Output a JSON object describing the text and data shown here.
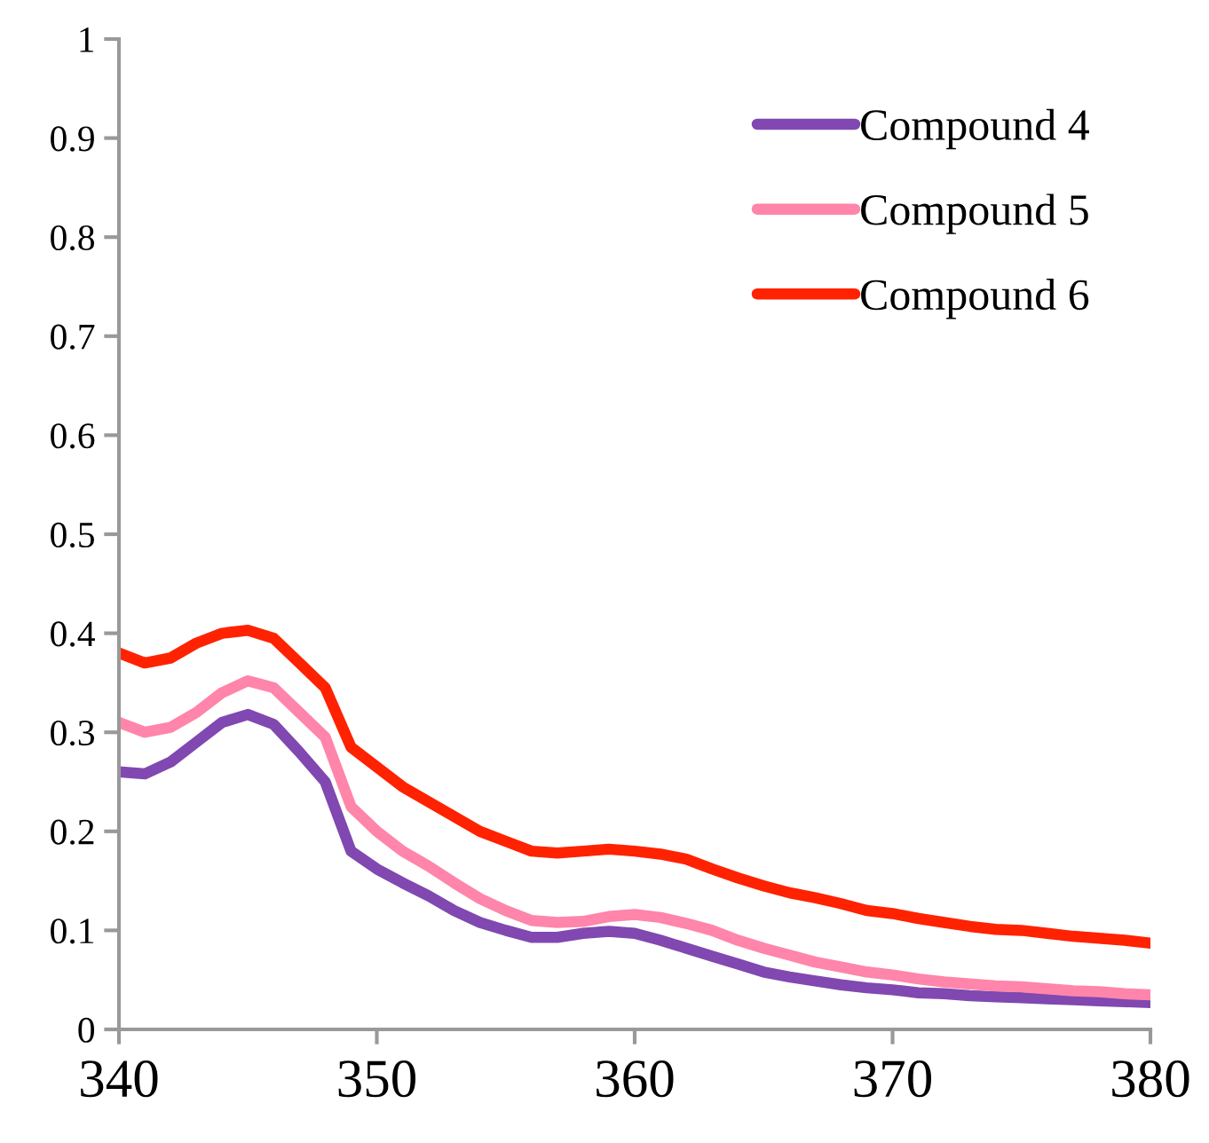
{
  "chart_data": {
    "type": "line",
    "x": [
      340,
      341,
      342,
      343,
      344,
      345,
      346,
      347,
      348,
      349,
      350,
      351,
      352,
      353,
      354,
      355,
      356,
      357,
      358,
      359,
      360,
      361,
      362,
      363,
      364,
      365,
      366,
      367,
      368,
      369,
      370,
      371,
      372,
      373,
      374,
      375,
      376,
      377,
      378,
      379,
      380
    ],
    "series": [
      {
        "name": "Compound 4",
        "color": "#8048b0",
        "values": [
          0.26,
          0.258,
          0.27,
          0.29,
          0.31,
          0.318,
          0.308,
          0.28,
          0.25,
          0.18,
          0.162,
          0.148,
          0.135,
          0.12,
          0.108,
          0.1,
          0.093,
          0.093,
          0.097,
          0.099,
          0.097,
          0.09,
          0.082,
          0.074,
          0.066,
          0.058,
          0.053,
          0.049,
          0.045,
          0.042,
          0.04,
          0.037,
          0.036,
          0.034,
          0.033,
          0.032,
          0.031,
          0.03,
          0.029,
          0.028,
          0.027
        ]
      },
      {
        "name": "Compound 5",
        "color": "#ff85aa",
        "values": [
          0.31,
          0.3,
          0.305,
          0.32,
          0.34,
          0.352,
          0.345,
          0.32,
          0.295,
          0.225,
          0.2,
          0.18,
          0.165,
          0.148,
          0.132,
          0.12,
          0.11,
          0.108,
          0.109,
          0.114,
          0.116,
          0.113,
          0.107,
          0.1,
          0.09,
          0.082,
          0.075,
          0.068,
          0.063,
          0.058,
          0.055,
          0.051,
          0.048,
          0.046,
          0.044,
          0.043,
          0.041,
          0.039,
          0.038,
          0.036,
          0.035
        ]
      },
      {
        "name": "Compound 6",
        "color": "#ff2200",
        "values": [
          0.38,
          0.37,
          0.375,
          0.39,
          0.4,
          0.403,
          0.395,
          0.37,
          0.345,
          0.285,
          0.265,
          0.245,
          0.23,
          0.215,
          0.2,
          0.19,
          0.18,
          0.178,
          0.18,
          0.182,
          0.18,
          0.177,
          0.172,
          0.162,
          0.153,
          0.145,
          0.138,
          0.133,
          0.127,
          0.12,
          0.117,
          0.112,
          0.108,
          0.104,
          0.101,
          0.1,
          0.097,
          0.094,
          0.092,
          0.09,
          0.087
        ]
      }
    ],
    "xlim": [
      340,
      380
    ],
    "xticks": [
      340,
      350,
      360,
      370,
      380
    ],
    "ylim": [
      0,
      1
    ],
    "yticks": [
      0,
      0.1,
      0.2,
      0.3,
      0.4,
      0.5,
      0.6,
      0.7,
      0.8,
      0.9,
      1
    ],
    "grid": false,
    "legend": "top right",
    "marker": "none",
    "line_style": "solid"
  }
}
